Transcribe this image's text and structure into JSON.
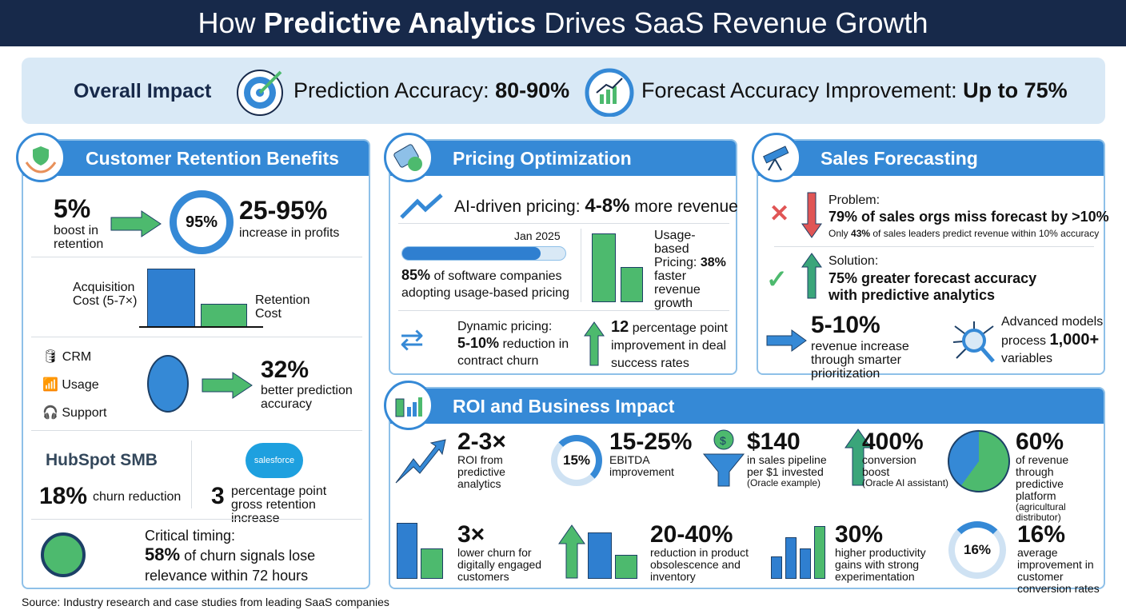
{
  "title": {
    "pre": "How ",
    "bold": "Predictive Analytics",
    "post": " Drives SaaS Revenue Growth"
  },
  "overall": {
    "label": "Overall Impact",
    "acc_label": "Prediction Accuracy: ",
    "acc_value": "80-90%",
    "fc_label": "Forecast Accuracy Improvement: ",
    "fc_value": "Up to 75%"
  },
  "retention": {
    "title": "Customer Retention Benefits",
    "boost_value": "5%",
    "boost_text": "boost in retention",
    "ring": "95%",
    "profit_value": "25-95%",
    "profit_text": "increase in profits",
    "acq_label": "Acquisition Cost (5-7×)",
    "ret_label": "Retention Cost",
    "sources": [
      "CRM",
      "Usage",
      "Support"
    ],
    "pred_value": "32%",
    "pred_text": "better prediction accuracy",
    "hubspot_logo": "HubSpot SMB",
    "hubspot_value": "18%",
    "hubspot_text": "churn reduction",
    "sf_logo": "salesforce",
    "sf_value": "3",
    "sf_text": "percentage point gross retention increase",
    "timing_label": "Critical timing:",
    "timing_value": "58%",
    "timing_text": "of churn signals lose relevance within 72 hours"
  },
  "pricing": {
    "title": "Pricing Optimization",
    "ai_label": "AI-driven pricing: ",
    "ai_value": "4-8%",
    "ai_post": " more revenue",
    "progress_label": "Jan 2025",
    "progress_value": 85,
    "adopt_value": "85%",
    "adopt_text": " of software companies adopting usage-based pricing",
    "usage_label": "Usage-based Pricing:",
    "usage_value": "38%",
    "usage_text": " faster revenue growth",
    "dyn_label": "Dynamic pricing:",
    "dyn_value": "5-10%",
    "dyn_text": " reduction in contract churn",
    "deal_value": "12",
    "deal_text": " percentage point improvement in deal success rates"
  },
  "sales": {
    "title": "Sales Forecasting",
    "problem_label": "Problem:",
    "problem_text": "79% of sales orgs miss forecast by >10%",
    "problem_sub_pre": "Only ",
    "problem_sub_val": "43%",
    "problem_sub_post": " of sales leaders predict revenue within 10% accuracy",
    "solution_label": "Solution:",
    "solution_text": "75% greater forecast accuracy with predictive analytics",
    "rev_value": "5-10%",
    "rev_text": "revenue increase through smarter prioritization",
    "models_pre": "Advanced models process ",
    "models_value": "1,000+",
    "models_post": " variables"
  },
  "roi": {
    "title": "ROI and Business Impact",
    "items": [
      {
        "value": "2-3×",
        "text": "ROI from predictive analytics",
        "note": ""
      },
      {
        "value": "15-25%",
        "text": "EBITDA improvement",
        "note": "",
        "ring": "15%"
      },
      {
        "value": "$140",
        "text": "in sales pipeline per $1 invested",
        "note": "(Oracle example)"
      },
      {
        "value": "400%",
        "text": "conversion boost",
        "note": "(Oracle AI assistant)"
      },
      {
        "value": "60%",
        "text": "of revenue through predictive platform",
        "note": "(agricultural distributor)"
      },
      {
        "value": "3×",
        "text": "lower churn for digitally engaged customers"
      },
      {
        "value": "20-40%",
        "text": "reduction in product obsolescence and inventory"
      },
      {
        "value": "30%",
        "text": "higher productivity gains with strong experimentation"
      },
      {
        "value": "16%",
        "text": "average improvement in customer conversion rates",
        "ring": "16%"
      }
    ]
  },
  "source": "Source: Industry research and case studies from leading SaaS companies",
  "colors": {
    "header": "#17294a",
    "accent": "#3589d6",
    "green": "#4dba6e",
    "red": "#e05555"
  }
}
